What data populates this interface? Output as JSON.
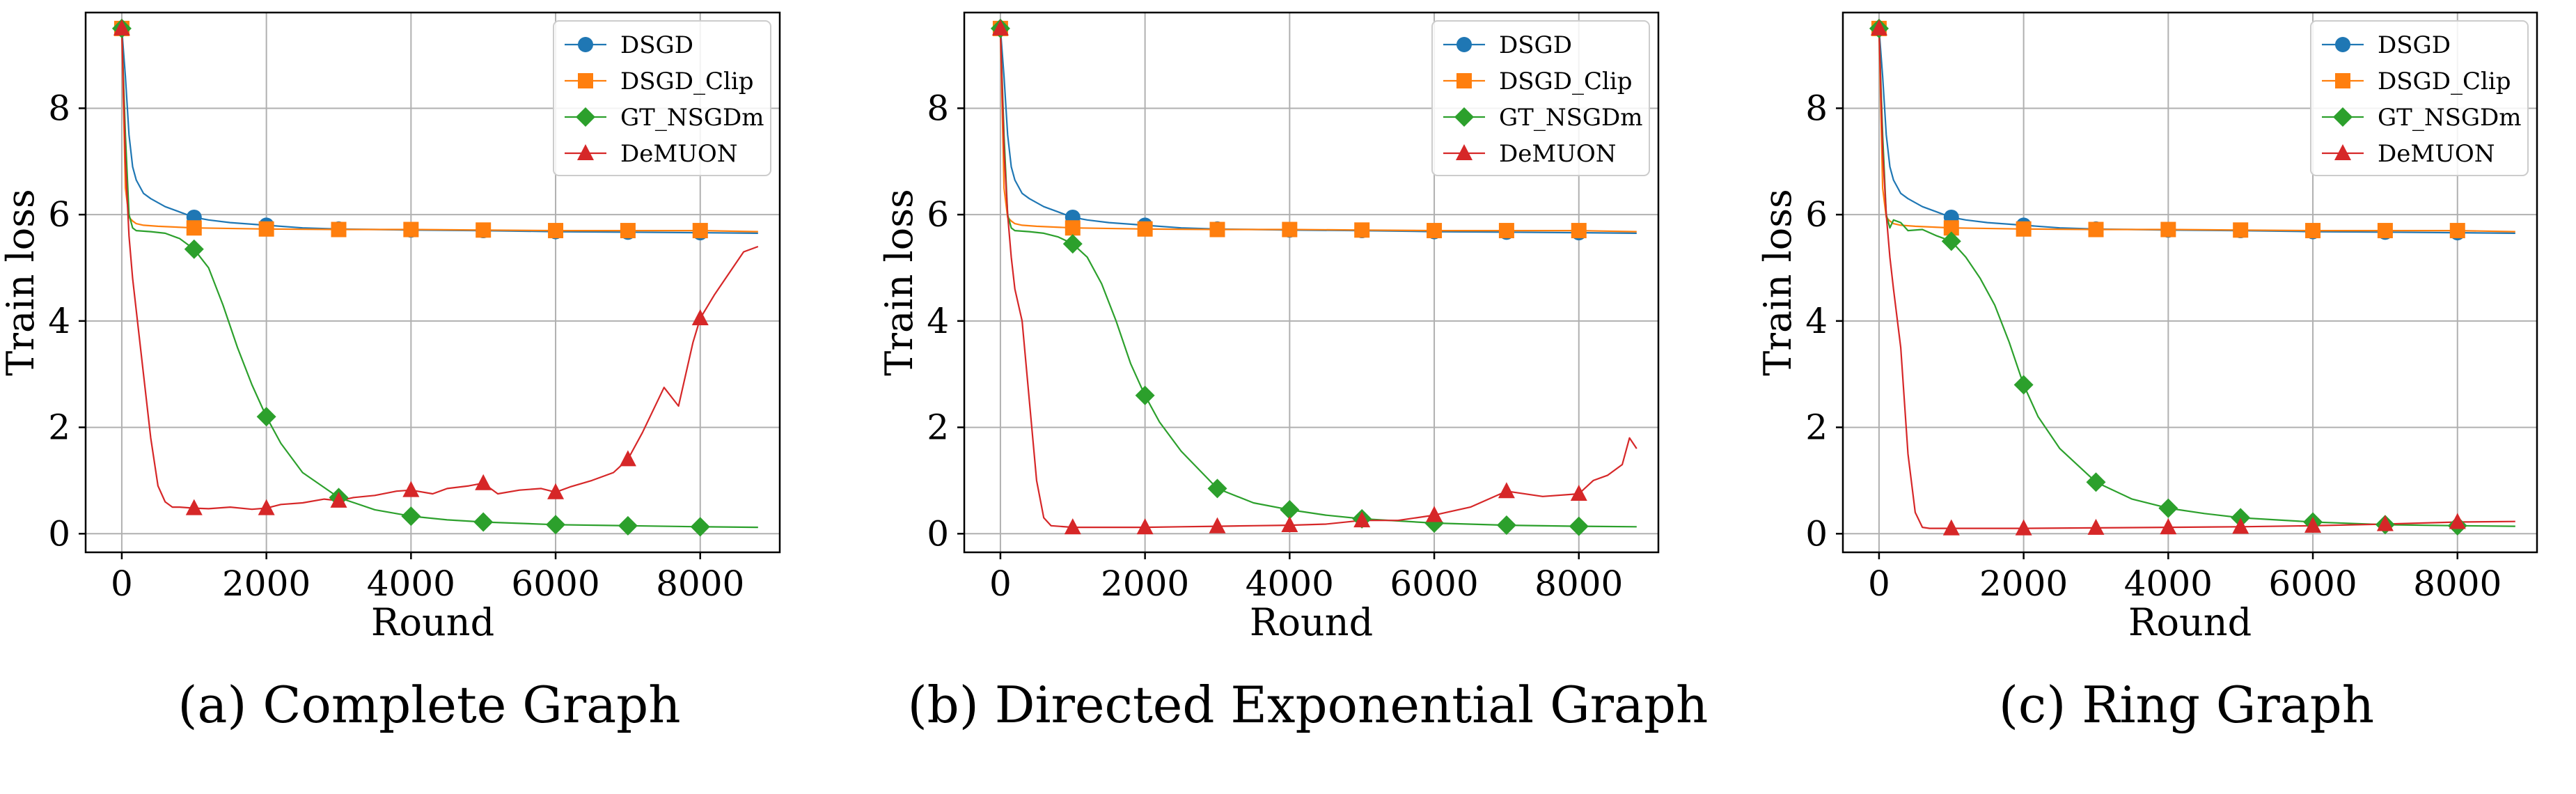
{
  "figure": {
    "colors": {
      "DSGD": "#1f77b4",
      "DSGD_Clip": "#ff7f0e",
      "GT_NSGDm": "#2ca02c",
      "DeMUON": "#d62728"
    }
  },
  "chart_data": [
    {
      "type": "line",
      "caption": "(a) Complete Graph",
      "xlabel": "Round",
      "ylabel": "Train loss",
      "xlim": [
        -500,
        9100
      ],
      "ylim": [
        -0.35,
        9.8
      ],
      "xticks": [
        0,
        2000,
        4000,
        6000,
        8000
      ],
      "yticks": [
        0,
        2,
        4,
        6,
        8
      ],
      "grid": true,
      "legend_position": "top-right",
      "series": [
        {
          "name": "DSGD",
          "marker": "circle",
          "x": [
            0,
            50,
            100,
            150,
            200,
            300,
            400,
            600,
            800,
            1000,
            1200,
            1500,
            2000,
            2500,
            3000,
            3500,
            4000,
            5000,
            6000,
            7000,
            8000,
            8800
          ],
          "y": [
            9.5,
            8.6,
            7.5,
            6.9,
            6.65,
            6.4,
            6.3,
            6.15,
            6.05,
            5.95,
            5.9,
            5.85,
            5.8,
            5.75,
            5.73,
            5.72,
            5.71,
            5.7,
            5.68,
            5.67,
            5.66,
            5.65
          ],
          "markers_x": [
            0,
            1000,
            2000,
            3000,
            4000,
            5000,
            6000,
            7000,
            8000
          ],
          "markers_y": [
            9.5,
            5.95,
            5.8,
            5.73,
            5.71,
            5.7,
            5.68,
            5.67,
            5.66
          ]
        },
        {
          "name": "DSGD_Clip",
          "marker": "square",
          "x": [
            0,
            50,
            100,
            150,
            200,
            300,
            500,
            1000,
            2000,
            3000,
            4000,
            5000,
            6000,
            7000,
            8000,
            8800
          ],
          "y": [
            9.5,
            6.5,
            5.95,
            5.88,
            5.83,
            5.8,
            5.78,
            5.75,
            5.73,
            5.72,
            5.72,
            5.71,
            5.7,
            5.7,
            5.7,
            5.68
          ],
          "markers_x": [
            0,
            1000,
            2000,
            3000,
            4000,
            5000,
            6000,
            7000,
            8000
          ],
          "markers_y": [
            9.5,
            5.75,
            5.73,
            5.72,
            5.72,
            5.71,
            5.7,
            5.7,
            5.7
          ]
        },
        {
          "name": "GT_NSGDm",
          "marker": "diamond",
          "x": [
            0,
            50,
            100,
            150,
            200,
            400,
            600,
            800,
            1000,
            1200,
            1400,
            1600,
            1800,
            2000,
            2200,
            2500,
            3000,
            3500,
            4000,
            4500,
            5000,
            6000,
            7000,
            8000,
            8800
          ],
          "y": [
            9.5,
            7.5,
            6.0,
            5.75,
            5.7,
            5.68,
            5.65,
            5.55,
            5.35,
            5.0,
            4.3,
            3.5,
            2.8,
            2.2,
            1.7,
            1.15,
            0.68,
            0.45,
            0.33,
            0.26,
            0.22,
            0.17,
            0.15,
            0.13,
            0.12
          ],
          "markers_x": [
            0,
            1000,
            2000,
            3000,
            4000,
            5000,
            6000,
            7000,
            8000
          ],
          "markers_y": [
            9.5,
            5.35,
            2.2,
            0.68,
            0.33,
            0.22,
            0.17,
            0.15,
            0.13
          ]
        },
        {
          "name": "DeMUON",
          "marker": "triangle",
          "x": [
            0,
            50,
            100,
            150,
            200,
            300,
            400,
            500,
            600,
            700,
            800,
            1000,
            1200,
            1500,
            1800,
            2000,
            2200,
            2500,
            2800,
            3000,
            3200,
            3500,
            3800,
            4000,
            4300,
            4500,
            4800,
            5000,
            5200,
            5500,
            5800,
            6000,
            6200,
            6500,
            6800,
            7000,
            7200,
            7500,
            7700,
            7900,
            8000,
            8200,
            8400,
            8600,
            8800
          ],
          "y": [
            9.5,
            7.0,
            5.6,
            4.8,
            4.2,
            3.0,
            1.8,
            0.9,
            0.6,
            0.5,
            0.5,
            0.48,
            0.47,
            0.5,
            0.46,
            0.48,
            0.55,
            0.58,
            0.65,
            0.62,
            0.68,
            0.72,
            0.8,
            0.82,
            0.75,
            0.85,
            0.9,
            0.95,
            0.75,
            0.82,
            0.85,
            0.78,
            0.88,
            1.0,
            1.15,
            1.4,
            1.9,
            2.75,
            2.4,
            3.6,
            4.05,
            4.5,
            4.9,
            5.3,
            5.4
          ],
          "markers_x": [
            0,
            1000,
            2000,
            3000,
            4000,
            5000,
            6000,
            7000,
            8000
          ],
          "markers_y": [
            9.5,
            0.48,
            0.48,
            0.62,
            0.82,
            0.95,
            0.78,
            1.4,
            4.05
          ]
        }
      ]
    },
    {
      "type": "line",
      "caption": "(b) Directed Exponential Graph",
      "xlabel": "Round",
      "ylabel": "Train loss",
      "xlim": [
        -500,
        9100
      ],
      "ylim": [
        -0.35,
        9.8
      ],
      "xticks": [
        0,
        2000,
        4000,
        6000,
        8000
      ],
      "yticks": [
        0,
        2,
        4,
        6,
        8
      ],
      "grid": true,
      "legend_position": "top-right",
      "series": [
        {
          "name": "DSGD",
          "marker": "circle",
          "x": [
            0,
            50,
            100,
            150,
            200,
            300,
            400,
            600,
            800,
            1000,
            1200,
            1500,
            2000,
            2500,
            3000,
            3500,
            4000,
            5000,
            6000,
            7000,
            8000,
            8800
          ],
          "y": [
            9.5,
            8.6,
            7.5,
            6.9,
            6.65,
            6.4,
            6.3,
            6.15,
            6.05,
            5.95,
            5.9,
            5.85,
            5.8,
            5.75,
            5.73,
            5.72,
            5.71,
            5.7,
            5.68,
            5.67,
            5.66,
            5.65
          ],
          "markers_x": [
            0,
            1000,
            2000,
            3000,
            4000,
            5000,
            6000,
            7000,
            8000
          ],
          "markers_y": [
            9.5,
            5.95,
            5.8,
            5.73,
            5.71,
            5.7,
            5.68,
            5.67,
            5.66
          ]
        },
        {
          "name": "DSGD_Clip",
          "marker": "square",
          "x": [
            0,
            50,
            100,
            150,
            200,
            300,
            500,
            1000,
            2000,
            3000,
            4000,
            5000,
            6000,
            7000,
            8000,
            8800
          ],
          "y": [
            9.5,
            6.5,
            5.95,
            5.88,
            5.83,
            5.8,
            5.78,
            5.75,
            5.73,
            5.72,
            5.72,
            5.71,
            5.7,
            5.7,
            5.7,
            5.68
          ],
          "markers_x": [
            0,
            1000,
            2000,
            3000,
            4000,
            5000,
            6000,
            7000,
            8000
          ],
          "markers_y": [
            9.5,
            5.75,
            5.73,
            5.72,
            5.72,
            5.71,
            5.7,
            5.7,
            5.7
          ]
        },
        {
          "name": "GT_NSGDm",
          "marker": "diamond",
          "x": [
            0,
            50,
            100,
            150,
            200,
            400,
            600,
            800,
            1000,
            1200,
            1400,
            1600,
            1800,
            2000,
            2200,
            2500,
            3000,
            3500,
            4000,
            4500,
            5000,
            6000,
            7000,
            8000,
            8800
          ],
          "y": [
            9.5,
            7.5,
            6.0,
            5.75,
            5.7,
            5.68,
            5.65,
            5.58,
            5.45,
            5.2,
            4.7,
            4.0,
            3.2,
            2.6,
            2.1,
            1.55,
            0.85,
            0.58,
            0.45,
            0.35,
            0.28,
            0.2,
            0.16,
            0.14,
            0.13
          ],
          "markers_x": [
            0,
            1000,
            2000,
            3000,
            4000,
            5000,
            6000,
            7000,
            8000
          ],
          "markers_y": [
            9.5,
            5.45,
            2.6,
            0.85,
            0.45,
            0.28,
            0.2,
            0.16,
            0.14
          ]
        },
        {
          "name": "DeMUON",
          "marker": "triangle",
          "x": [
            0,
            50,
            100,
            150,
            200,
            300,
            400,
            500,
            600,
            700,
            1000,
            1500,
            2000,
            2500,
            3000,
            3500,
            4000,
            4500,
            5000,
            5500,
            6000,
            6500,
            7000,
            7500,
            8000,
            8200,
            8400,
            8600,
            8700,
            8800
          ],
          "y": [
            9.5,
            7.2,
            6.0,
            5.2,
            4.6,
            4.0,
            2.5,
            1.0,
            0.3,
            0.15,
            0.12,
            0.12,
            0.12,
            0.13,
            0.14,
            0.15,
            0.16,
            0.18,
            0.25,
            0.25,
            0.35,
            0.5,
            0.8,
            0.7,
            0.75,
            1.0,
            1.1,
            1.3,
            1.8,
            1.6
          ],
          "markers_x": [
            0,
            1000,
            2000,
            3000,
            4000,
            5000,
            6000,
            7000,
            8000
          ],
          "markers_y": [
            9.5,
            0.12,
            0.12,
            0.14,
            0.16,
            0.25,
            0.35,
            0.8,
            0.75
          ]
        }
      ]
    },
    {
      "type": "line",
      "caption": "(c) Ring Graph",
      "xlabel": "Round",
      "ylabel": "Train loss",
      "xlim": [
        -500,
        9100
      ],
      "ylim": [
        -0.35,
        9.8
      ],
      "xticks": [
        0,
        2000,
        4000,
        6000,
        8000
      ],
      "yticks": [
        0,
        2,
        4,
        6,
        8
      ],
      "grid": true,
      "legend_position": "top-right",
      "series": [
        {
          "name": "DSGD",
          "marker": "circle",
          "x": [
            0,
            50,
            100,
            150,
            200,
            300,
            400,
            600,
            800,
            1000,
            1200,
            1500,
            2000,
            2500,
            3000,
            3500,
            4000,
            5000,
            6000,
            7000,
            8000,
            8800
          ],
          "y": [
            9.5,
            8.6,
            7.5,
            6.9,
            6.65,
            6.4,
            6.3,
            6.15,
            6.05,
            5.95,
            5.9,
            5.85,
            5.8,
            5.75,
            5.73,
            5.72,
            5.71,
            5.7,
            5.68,
            5.67,
            5.66,
            5.65
          ],
          "markers_x": [
            0,
            1000,
            2000,
            3000,
            4000,
            5000,
            6000,
            7000,
            8000
          ],
          "markers_y": [
            9.5,
            5.95,
            5.8,
            5.73,
            5.71,
            5.7,
            5.68,
            5.67,
            5.66
          ]
        },
        {
          "name": "DSGD_Clip",
          "marker": "square",
          "x": [
            0,
            50,
            100,
            150,
            200,
            300,
            500,
            1000,
            2000,
            3000,
            4000,
            5000,
            6000,
            7000,
            8000,
            8800
          ],
          "y": [
            9.5,
            6.5,
            5.95,
            5.88,
            5.83,
            5.8,
            5.78,
            5.75,
            5.73,
            5.72,
            5.72,
            5.71,
            5.7,
            5.7,
            5.7,
            5.68
          ],
          "markers_x": [
            0,
            1000,
            2000,
            3000,
            4000,
            5000,
            6000,
            7000,
            8000
          ],
          "markers_y": [
            9.5,
            5.75,
            5.73,
            5.72,
            5.72,
            5.71,
            5.7,
            5.7,
            5.7
          ]
        },
        {
          "name": "GT_NSGDm",
          "marker": "diamond",
          "x": [
            0,
            50,
            100,
            150,
            200,
            300,
            400,
            600,
            800,
            1000,
            1200,
            1400,
            1600,
            1800,
            2000,
            2200,
            2500,
            3000,
            3500,
            4000,
            4500,
            5000,
            6000,
            7000,
            8000,
            8800
          ],
          "y": [
            9.5,
            7.5,
            6.0,
            5.75,
            5.9,
            5.85,
            5.7,
            5.72,
            5.6,
            5.5,
            5.2,
            4.8,
            4.3,
            3.6,
            2.8,
            2.2,
            1.6,
            0.97,
            0.65,
            0.48,
            0.38,
            0.3,
            0.22,
            0.17,
            0.15,
            0.14
          ],
          "markers_x": [
            0,
            1000,
            2000,
            3000,
            4000,
            5000,
            6000,
            7000,
            8000
          ],
          "markers_y": [
            9.5,
            5.5,
            2.8,
            0.97,
            0.48,
            0.3,
            0.22,
            0.17,
            0.15
          ]
        },
        {
          "name": "DeMUON",
          "marker": "triangle",
          "x": [
            0,
            50,
            100,
            150,
            200,
            300,
            400,
            500,
            600,
            700,
            1000,
            2000,
            3000,
            4000,
            5000,
            6000,
            7000,
            8000,
            8800
          ],
          "y": [
            9.5,
            7.2,
            6.0,
            5.2,
            4.6,
            3.5,
            1.5,
            0.4,
            0.12,
            0.1,
            0.1,
            0.1,
            0.11,
            0.12,
            0.13,
            0.15,
            0.18,
            0.22,
            0.23
          ],
          "markers_x": [
            0,
            1000,
            2000,
            3000,
            4000,
            5000,
            6000,
            7000,
            8000
          ],
          "markers_y": [
            9.5,
            0.1,
            0.1,
            0.11,
            0.12,
            0.13,
            0.15,
            0.18,
            0.22
          ]
        }
      ]
    }
  ]
}
